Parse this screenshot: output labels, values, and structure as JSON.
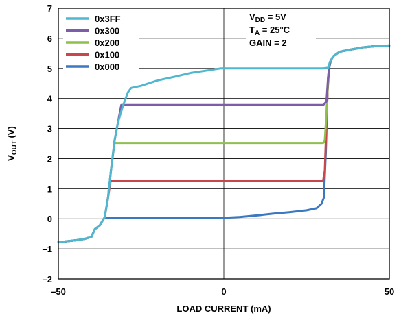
{
  "chart_data": {
    "type": "line",
    "xlabel": "LOAD CURRENT (mA)",
    "ylabel_main": "V",
    "ylabel_sub": "OUT",
    "ylabel_unit": " (V)",
    "xlim": [
      -50,
      50
    ],
    "ylim": [
      -2,
      7
    ],
    "x_ticks": [
      -50,
      0,
      50
    ],
    "x_tick_labels": [
      "–50",
      "0",
      "50"
    ],
    "y_ticks": [
      -2,
      -1,
      0,
      1,
      2,
      3,
      4,
      5,
      6,
      7
    ],
    "y_tick_labels": [
      "–2",
      "–1",
      "0",
      "1",
      "2",
      "3",
      "4",
      "5",
      "6",
      "7"
    ],
    "grid": true,
    "legend_position": "top-left",
    "conditions": [
      {
        "main": "V",
        "sub": "DD",
        "rest": " = 5V"
      },
      {
        "main": "T",
        "sub": "A",
        "rest": " = 25°C"
      },
      {
        "main": "GAIN = 2",
        "sub": "",
        "rest": ""
      }
    ],
    "series": [
      {
        "name": "0x3FF",
        "color": "#4fb8d0",
        "points": [
          [
            -50,
            -0.78
          ],
          [
            -45,
            -0.72
          ],
          [
            -42,
            -0.67
          ],
          [
            -40,
            -0.6
          ],
          [
            -39,
            -0.35
          ],
          [
            -37.5,
            -0.22
          ],
          [
            -36,
            0.05
          ],
          [
            -35,
            0.7
          ],
          [
            -34,
            1.7
          ],
          [
            -33,
            2.6
          ],
          [
            -32,
            3.2
          ],
          [
            -30.5,
            3.75
          ],
          [
            -29,
            4.2
          ],
          [
            -28,
            4.35
          ],
          [
            -25,
            4.42
          ],
          [
            -20,
            4.6
          ],
          [
            -15,
            4.72
          ],
          [
            -10,
            4.85
          ],
          [
            -5,
            4.93
          ],
          [
            -1,
            5.0
          ],
          [
            0,
            5.0
          ],
          [
            30,
            5.0
          ],
          [
            31.5,
            5.02
          ],
          [
            32,
            5.2
          ],
          [
            33,
            5.4
          ],
          [
            35,
            5.55
          ],
          [
            38,
            5.62
          ],
          [
            42,
            5.7
          ],
          [
            46,
            5.74
          ],
          [
            50,
            5.76
          ]
        ]
      },
      {
        "name": "0x300",
        "color": "#7b5ea7",
        "points": [
          [
            -50,
            -0.78
          ],
          [
            -45,
            -0.72
          ],
          [
            -42,
            -0.67
          ],
          [
            -40,
            -0.6
          ],
          [
            -39,
            -0.35
          ],
          [
            -37.5,
            -0.22
          ],
          [
            -36,
            0.05
          ],
          [
            -35,
            0.7
          ],
          [
            -34,
            1.7
          ],
          [
            -33,
            2.6
          ],
          [
            -32,
            3.2
          ],
          [
            -31,
            3.78
          ],
          [
            -30,
            3.78
          ],
          [
            30,
            3.78
          ],
          [
            31,
            3.9
          ],
          [
            31.5,
            4.7
          ],
          [
            32,
            5.2
          ],
          [
            33,
            5.4
          ],
          [
            35,
            5.55
          ],
          [
            38,
            5.62
          ],
          [
            42,
            5.7
          ],
          [
            46,
            5.74
          ],
          [
            50,
            5.76
          ]
        ]
      },
      {
        "name": "0x200",
        "color": "#8fbf4d",
        "points": [
          [
            -50,
            -0.78
          ],
          [
            -45,
            -0.72
          ],
          [
            -42,
            -0.67
          ],
          [
            -40,
            -0.6
          ],
          [
            -39,
            -0.35
          ],
          [
            -37.5,
            -0.22
          ],
          [
            -36,
            0.05
          ],
          [
            -35,
            0.7
          ],
          [
            -34,
            1.7
          ],
          [
            -33,
            2.52
          ],
          [
            30,
            2.52
          ],
          [
            30.5,
            2.6
          ],
          [
            31,
            3.5
          ],
          [
            31.5,
            4.7
          ],
          [
            32,
            5.2
          ],
          [
            33,
            5.4
          ],
          [
            35,
            5.55
          ],
          [
            38,
            5.62
          ],
          [
            42,
            5.7
          ],
          [
            46,
            5.74
          ],
          [
            50,
            5.76
          ]
        ]
      },
      {
        "name": "0x100",
        "color": "#c8474a",
        "points": [
          [
            -50,
            -0.78
          ],
          [
            -45,
            -0.72
          ],
          [
            -42,
            -0.67
          ],
          [
            -40,
            -0.6
          ],
          [
            -39,
            -0.35
          ],
          [
            -37.5,
            -0.22
          ],
          [
            -36,
            0.05
          ],
          [
            -35,
            0.7
          ],
          [
            -34.2,
            1.27
          ],
          [
            30,
            1.27
          ],
          [
            30.5,
            1.6
          ],
          [
            31,
            3.2
          ],
          [
            31.5,
            4.7
          ],
          [
            32,
            5.2
          ],
          [
            33,
            5.4
          ],
          [
            35,
            5.55
          ],
          [
            38,
            5.62
          ],
          [
            42,
            5.7
          ],
          [
            46,
            5.74
          ],
          [
            50,
            5.76
          ]
        ]
      },
      {
        "name": "0x000",
        "color": "#3a78c2",
        "points": [
          [
            -50,
            -0.78
          ],
          [
            -45,
            -0.72
          ],
          [
            -42,
            -0.67
          ],
          [
            -40,
            -0.6
          ],
          [
            -39,
            -0.35
          ],
          [
            -37.5,
            -0.22
          ],
          [
            -36,
            0.05
          ],
          [
            -35,
            0.02
          ],
          [
            -20,
            0.02
          ],
          [
            -5,
            0.02
          ],
          [
            0,
            0.03
          ],
          [
            5,
            0.06
          ],
          [
            10,
            0.11
          ],
          [
            15,
            0.17
          ],
          [
            20,
            0.22
          ],
          [
            25,
            0.28
          ],
          [
            28,
            0.35
          ],
          [
            29.5,
            0.5
          ],
          [
            30.2,
            0.7
          ],
          [
            30.8,
            2.2
          ],
          [
            31.3,
            4.2
          ],
          [
            31.8,
            5.0
          ],
          [
            32.3,
            5.25
          ],
          [
            33,
            5.4
          ],
          [
            35,
            5.55
          ],
          [
            38,
            5.62
          ],
          [
            42,
            5.7
          ],
          [
            46,
            5.74
          ],
          [
            50,
            5.76
          ]
        ]
      }
    ]
  }
}
